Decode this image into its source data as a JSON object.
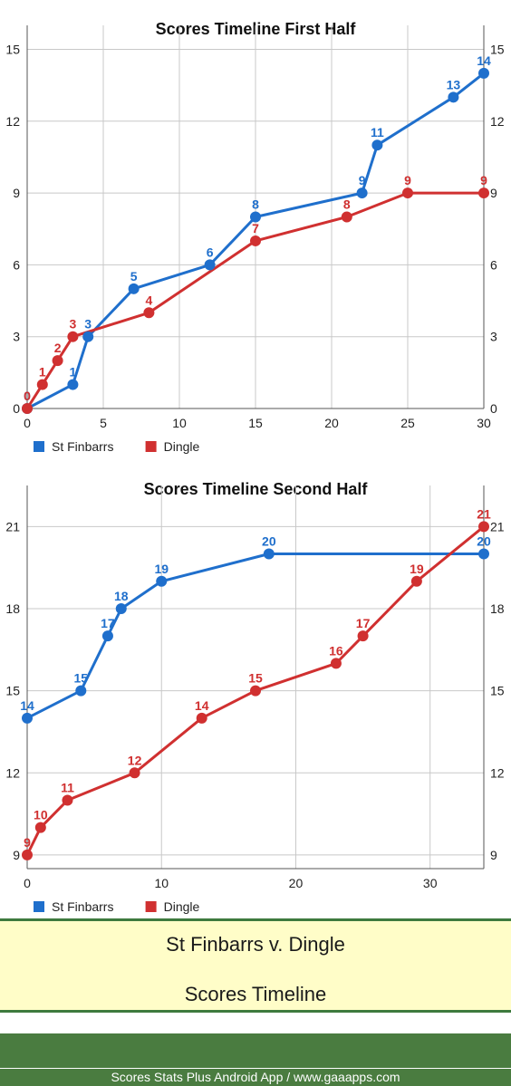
{
  "chart_data": [
    {
      "type": "line",
      "title": "Scores Timeline First Half",
      "xlabel": "",
      "ylabel": "",
      "xlim": [
        0,
        30
      ],
      "ylim": [
        0,
        16
      ],
      "x_ticks": [
        0,
        5,
        10,
        15,
        20,
        25,
        30
      ],
      "y_ticks": [
        0,
        3,
        6,
        9,
        12,
        15
      ],
      "grid": true,
      "legend_position": "bottom-left",
      "series": [
        {
          "name": "St Finbarrs",
          "color": "#1f6fcc",
          "points": [
            [
              0,
              0
            ],
            [
              3,
              1
            ],
            [
              4,
              3
            ],
            [
              7,
              5
            ],
            [
              12,
              6
            ],
            [
              15,
              8
            ],
            [
              22,
              9
            ],
            [
              23,
              11
            ],
            [
              28,
              13
            ],
            [
              30,
              14
            ]
          ],
          "labels": [
            "0",
            "1",
            "3",
            "5",
            "6",
            "8",
            "9",
            "11",
            "13",
            "14"
          ]
        },
        {
          "name": "Dingle",
          "color": "#d03030",
          "points": [
            [
              0,
              0
            ],
            [
              1,
              1
            ],
            [
              2,
              2
            ],
            [
              3,
              3
            ],
            [
              8,
              4
            ],
            [
              15,
              7
            ],
            [
              21,
              8
            ],
            [
              25,
              9
            ],
            [
              30,
              9
            ]
          ],
          "labels": [
            "0",
            "1",
            "2",
            "3",
            "4",
            "7",
            "8",
            "9",
            "9"
          ]
        }
      ]
    },
    {
      "type": "line",
      "title": "Scores Timeline Second Half",
      "xlabel": "",
      "ylabel": "",
      "xlim": [
        0,
        34
      ],
      "ylim": [
        8.5,
        22.5
      ],
      "x_ticks": [
        0,
        10,
        20,
        30
      ],
      "y_ticks": [
        9,
        12,
        15,
        18,
        21
      ],
      "grid": true,
      "legend_position": "bottom-left",
      "series": [
        {
          "name": "St Finbarrs",
          "color": "#1f6fcc",
          "points": [
            [
              0,
              14
            ],
            [
              4,
              15
            ],
            [
              6,
              17
            ],
            [
              7,
              18
            ],
            [
              10,
              19
            ],
            [
              18,
              20
            ],
            [
              34,
              20
            ]
          ],
          "labels": [
            "14",
            "15",
            "17",
            "18",
            "19",
            "20",
            "20"
          ]
        },
        {
          "name": "Dingle",
          "color": "#d03030",
          "points": [
            [
              0,
              9
            ],
            [
              1,
              10
            ],
            [
              3,
              11
            ],
            [
              8,
              12
            ],
            [
              13,
              14
            ],
            [
              17,
              15
            ],
            [
              23,
              16
            ],
            [
              25,
              17
            ],
            [
              29,
              19
            ],
            [
              34,
              21
            ]
          ],
          "labels": [
            "9",
            "10",
            "11",
            "12",
            "14",
            "15",
            "16",
            "17",
            "19",
            "21"
          ]
        }
      ]
    }
  ],
  "footer": {
    "match_title": "St Finbarrs v. Dingle",
    "report_title": "Scores Timeline",
    "credit": "Scores Stats Plus Android App / www.gaaapps.com"
  }
}
